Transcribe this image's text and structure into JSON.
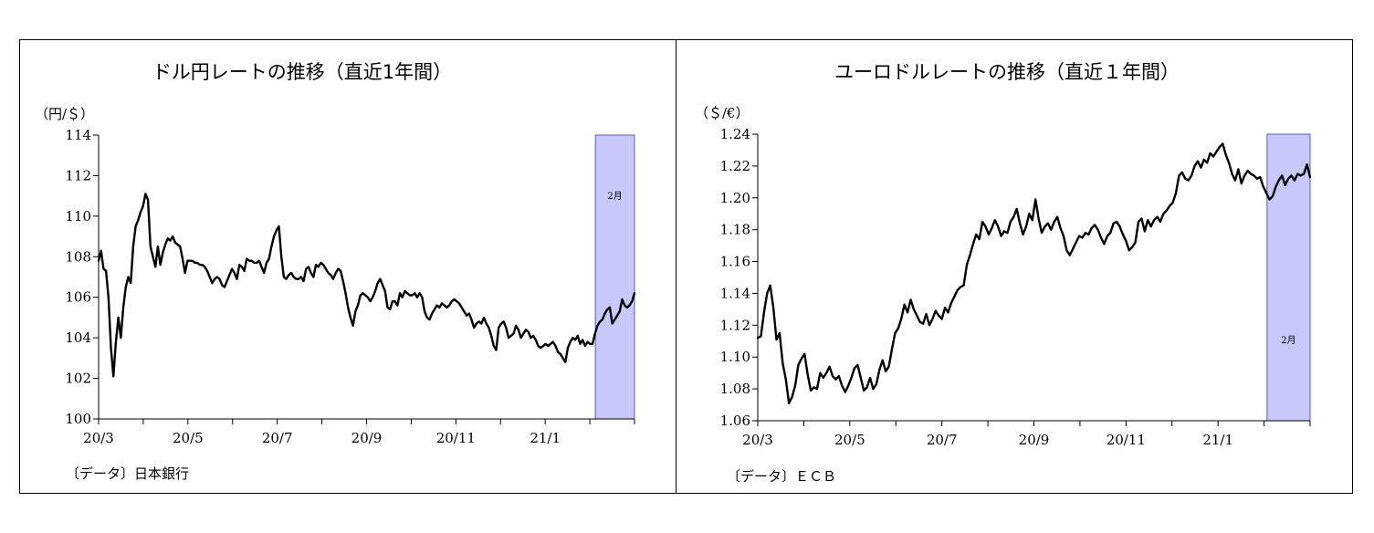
{
  "chart_data": [
    {
      "type": "line",
      "title": "ドル円レートの推移（直近1年間）",
      "unit": "（円/＄）",
      "source": "〔データ〕日本銀行",
      "band_label": "2月",
      "band_range": [
        0.927,
        1.0
      ],
      "x_ticks": [
        "20/3",
        "20/5",
        "20/7",
        "20/9",
        "20/11",
        "21/1"
      ],
      "y_ticks": [
        "100",
        "102",
        "104",
        "106",
        "108",
        "110",
        "112",
        "114"
      ],
      "ylim": [
        100,
        114
      ],
      "grid": false,
      "series": [
        {
          "values": [
            107.8,
            108.3,
            107.4,
            107.3,
            106.0,
            103.5,
            102.1,
            103.8,
            105.0,
            104.0,
            105.5,
            106.5,
            107.0,
            106.7,
            108.5,
            109.5,
            109.8,
            110.2,
            110.5,
            111.1,
            110.8,
            108.5,
            108.0,
            107.5,
            108.5,
            107.6,
            108.2,
            108.6,
            108.9,
            108.8,
            109.0,
            108.7,
            108.6,
            108.5,
            107.9,
            107.2,
            107.8,
            107.8,
            107.8,
            107.7,
            107.7,
            107.6,
            107.6,
            107.5,
            107.3,
            107.0,
            106.7,
            106.9,
            107.0,
            106.9,
            106.6,
            106.5,
            106.8,
            107.1,
            107.4,
            107.2,
            106.9,
            107.6,
            107.5,
            107.3,
            107.9,
            107.8,
            107.8,
            107.7,
            107.7,
            107.8,
            107.5,
            107.2,
            107.7,
            107.9,
            108.5,
            109.0,
            109.3,
            109.5,
            108.0,
            107.0,
            106.9,
            107.1,
            107.2,
            107.0,
            106.9,
            106.9,
            107.0,
            106.8,
            107.4,
            107.5,
            107.2,
            107.0,
            107.6,
            107.5,
            107.7,
            107.6,
            107.4,
            107.2,
            107.1,
            106.9,
            107.2,
            107.4,
            107.3,
            106.8,
            106.2,
            105.5,
            105.0,
            104.6,
            105.3,
            105.6,
            106.1,
            106.2,
            106.1,
            106.0,
            105.8,
            106.0,
            106.3,
            106.7,
            106.9,
            106.6,
            106.3,
            105.5,
            105.4,
            105.8,
            105.8,
            105.6,
            106.2,
            106.0,
            106.3,
            106.2,
            106.1,
            106.1,
            106.2,
            106.0,
            106.2,
            106.0,
            105.3,
            105.0,
            104.9,
            105.2,
            105.4,
            105.6,
            105.5,
            105.7,
            105.6,
            105.5,
            105.6,
            105.8,
            105.9,
            105.8,
            105.7,
            105.5,
            105.3,
            105.1,
            105.2,
            104.9,
            104.5,
            104.7,
            104.8,
            104.7,
            105.0,
            104.7,
            104.5,
            104.1,
            103.6,
            103.4,
            104.5,
            104.7,
            104.8,
            104.5,
            104.0,
            104.1,
            104.2,
            104.6,
            104.4,
            104.0,
            104.2,
            104.4,
            104.3,
            104.0,
            104.1,
            103.9,
            103.6,
            103.5,
            103.6,
            103.7,
            103.6,
            103.7,
            103.8,
            103.6,
            103.3,
            103.2,
            103.0,
            102.8,
            103.5,
            103.8,
            104.0,
            103.9,
            104.1,
            103.7,
            103.9,
            103.6,
            103.8,
            103.7,
            103.7,
            104.2,
            104.6,
            104.8,
            104.9,
            105.2,
            105.4,
            105.5,
            104.7,
            104.9,
            105.1,
            105.3,
            105.9,
            105.6,
            105.5,
            105.6,
            105.8,
            106.2
          ]
        }
      ]
    },
    {
      "type": "line",
      "title": "ユーロドルレートの推移（直近１年間）",
      "unit": "（＄/€）",
      "source": "〔データ〕ＥＣＢ",
      "band_label": "2月",
      "band_range": [
        0.922,
        1.0
      ],
      "x_ticks": [
        "20/3",
        "20/5",
        "20/7",
        "20/9",
        "20/11",
        "21/1"
      ],
      "y_ticks": [
        "1.06",
        "1.08",
        "1.10",
        "1.12",
        "1.14",
        "1.16",
        "1.18",
        "1.20",
        "1.22",
        "1.24"
      ],
      "ylim": [
        1.06,
        1.24
      ],
      "grid": false,
      "series": [
        {
          "values": [
            1.112,
            1.113,
            1.128,
            1.14,
            1.145,
            1.131,
            1.111,
            1.115,
            1.096,
            1.086,
            1.071,
            1.075,
            1.082,
            1.095,
            1.099,
            1.102,
            1.089,
            1.079,
            1.081,
            1.08,
            1.09,
            1.087,
            1.09,
            1.094,
            1.088,
            1.086,
            1.088,
            1.082,
            1.078,
            1.082,
            1.087,
            1.093,
            1.095,
            1.087,
            1.079,
            1.081,
            1.087,
            1.08,
            1.083,
            1.092,
            1.098,
            1.091,
            1.094,
            1.105,
            1.115,
            1.118,
            1.124,
            1.133,
            1.128,
            1.136,
            1.13,
            1.126,
            1.122,
            1.121,
            1.127,
            1.12,
            1.124,
            1.129,
            1.126,
            1.124,
            1.131,
            1.128,
            1.134,
            1.138,
            1.142,
            1.144,
            1.145,
            1.158,
            1.164,
            1.171,
            1.177,
            1.174,
            1.185,
            1.182,
            1.177,
            1.181,
            1.186,
            1.182,
            1.176,
            1.179,
            1.178,
            1.185,
            1.188,
            1.193,
            1.184,
            1.177,
            1.182,
            1.19,
            1.186,
            1.199,
            1.187,
            1.178,
            1.182,
            1.184,
            1.18,
            1.185,
            1.188,
            1.181,
            1.176,
            1.167,
            1.164,
            1.168,
            1.172,
            1.176,
            1.175,
            1.178,
            1.177,
            1.181,
            1.183,
            1.18,
            1.175,
            1.171,
            1.176,
            1.178,
            1.184,
            1.185,
            1.182,
            1.177,
            1.173,
            1.167,
            1.169,
            1.172,
            1.185,
            1.187,
            1.179,
            1.186,
            1.182,
            1.186,
            1.188,
            1.185,
            1.19,
            1.192,
            1.195,
            1.197,
            1.203,
            1.214,
            1.216,
            1.212,
            1.211,
            1.214,
            1.22,
            1.223,
            1.219,
            1.224,
            1.222,
            1.228,
            1.226,
            1.229,
            1.232,
            1.234,
            1.227,
            1.222,
            1.215,
            1.211,
            1.218,
            1.209,
            1.214,
            1.217,
            1.215,
            1.214,
            1.212,
            1.213,
            1.207,
            1.203,
            1.199,
            1.201,
            1.207,
            1.211,
            1.214,
            1.208,
            1.212,
            1.214,
            1.211,
            1.215,
            1.214,
            1.215,
            1.221,
            1.213
          ]
        }
      ]
    }
  ]
}
